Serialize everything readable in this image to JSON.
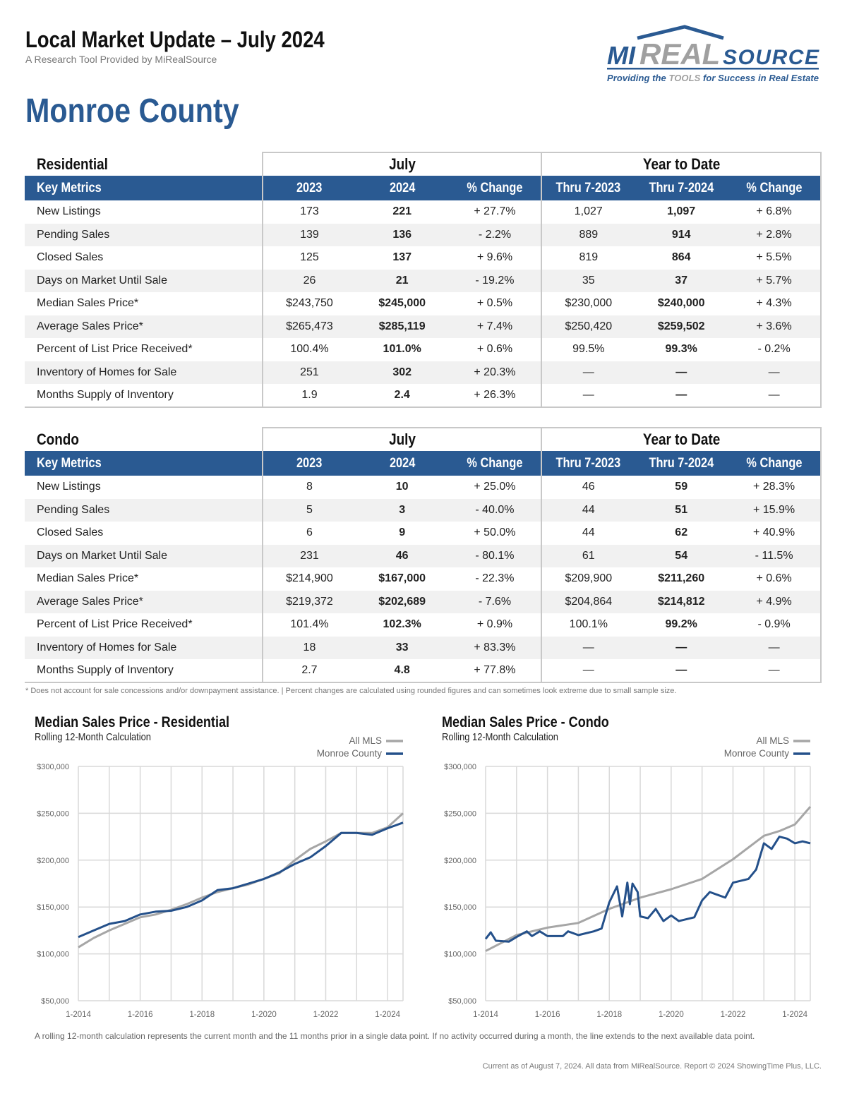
{
  "header": {
    "title": "Local Market Update – July 2024",
    "subtitle": "A Research Tool Provided by MiRealSource",
    "county": "Monroe County"
  },
  "logo": {
    "text_mi": "MI",
    "text_real": "REAL",
    "text_source": "SOURCE",
    "tagline": "Providing the TOOLS for Success in Real Estate"
  },
  "colors": {
    "brand_blue": "#2a5a92",
    "all_mls_gray": "#a6a6a6",
    "monroe_blue": "#24508a"
  },
  "tables": [
    {
      "section": "Residential",
      "group1": "July",
      "group2": "Year to Date",
      "columns": [
        "Key Metrics",
        "2023",
        "2024",
        "% Change",
        "Thru 7-2023",
        "Thru 7-2024",
        "% Change"
      ],
      "rows": [
        [
          "New Listings",
          "173",
          "221",
          "+ 27.7%",
          "1,027",
          "1,097",
          "+ 6.8%"
        ],
        [
          "Pending Sales",
          "139",
          "136",
          "- 2.2%",
          "889",
          "914",
          "+ 2.8%"
        ],
        [
          "Closed Sales",
          "125",
          "137",
          "+ 9.6%",
          "819",
          "864",
          "+ 5.5%"
        ],
        [
          "Days on Market Until Sale",
          "26",
          "21",
          "- 19.2%",
          "35",
          "37",
          "+ 5.7%"
        ],
        [
          "Median Sales Price*",
          "$243,750",
          "$245,000",
          "+ 0.5%",
          "$230,000",
          "$240,000",
          "+ 4.3%"
        ],
        [
          "Average Sales Price*",
          "$265,473",
          "$285,119",
          "+ 7.4%",
          "$250,420",
          "$259,502",
          "+ 3.6%"
        ],
        [
          "Percent of List Price Received*",
          "100.4%",
          "101.0%",
          "+ 0.6%",
          "99.5%",
          "99.3%",
          "- 0.2%"
        ],
        [
          "Inventory of Homes for Sale",
          "251",
          "302",
          "+ 20.3%",
          "—",
          "—",
          "—"
        ],
        [
          "Months Supply of Inventory",
          "1.9",
          "2.4",
          "+ 26.3%",
          "—",
          "—",
          "—"
        ]
      ]
    },
    {
      "section": "Condo",
      "group1": "July",
      "group2": "Year to Date",
      "columns": [
        "Key Metrics",
        "2023",
        "2024",
        "% Change",
        "Thru 7-2023",
        "Thru 7-2024",
        "% Change"
      ],
      "rows": [
        [
          "New Listings",
          "8",
          "10",
          "+ 25.0%",
          "46",
          "59",
          "+ 28.3%"
        ],
        [
          "Pending Sales",
          "5",
          "3",
          "- 40.0%",
          "44",
          "51",
          "+ 15.9%"
        ],
        [
          "Closed Sales",
          "6",
          "9",
          "+ 50.0%",
          "44",
          "62",
          "+ 40.9%"
        ],
        [
          "Days on Market Until Sale",
          "231",
          "46",
          "- 80.1%",
          "61",
          "54",
          "- 11.5%"
        ],
        [
          "Median Sales Price*",
          "$214,900",
          "$167,000",
          "- 22.3%",
          "$209,900",
          "$211,260",
          "+ 0.6%"
        ],
        [
          "Average Sales Price*",
          "$219,372",
          "$202,689",
          "- 7.6%",
          "$204,864",
          "$214,812",
          "+ 4.9%"
        ],
        [
          "Percent of List Price Received*",
          "101.4%",
          "102.3%",
          "+ 0.9%",
          "100.1%",
          "99.2%",
          "- 0.9%"
        ],
        [
          "Inventory of Homes for Sale",
          "18",
          "33",
          "+ 83.3%",
          "—",
          "—",
          "—"
        ],
        [
          "Months Supply of Inventory",
          "2.7",
          "4.8",
          "+ 77.8%",
          "—",
          "—",
          "—"
        ]
      ]
    }
  ],
  "footnote": "* Does not account for sale concessions and/or downpayment assistance. | Percent changes are calculated using rounded figures and can sometimes look extreme due to small sample size.",
  "chart_data": [
    {
      "type": "line",
      "title": "Median Sales Price - Residential",
      "subtitle": "Rolling 12-Month Calculation",
      "ylim": [
        50000,
        300000
      ],
      "yticks": [
        "$300,000",
        "$250,000",
        "$200,000",
        "$150,000",
        "$100,000",
        "$50,000"
      ],
      "xticks": [
        "1-2014",
        "1-2016",
        "1-2018",
        "1-2020",
        "1-2022",
        "1-2024"
      ],
      "grid": true,
      "legend": "top-right",
      "x": [
        "2014-01",
        "2014-07",
        "2015-01",
        "2015-07",
        "2016-01",
        "2016-07",
        "2017-01",
        "2017-07",
        "2018-01",
        "2018-07",
        "2019-01",
        "2019-07",
        "2020-01",
        "2020-07",
        "2021-01",
        "2021-07",
        "2022-01",
        "2022-07",
        "2023-01",
        "2023-07",
        "2024-01",
        "2024-07"
      ],
      "series": [
        {
          "name": "All MLS",
          "values": [
            107000,
            117000,
            125000,
            132000,
            139000,
            142000,
            147000,
            153000,
            160000,
            166000,
            170000,
            174000,
            180000,
            186000,
            200000,
            212000,
            220000,
            229000,
            229000,
            229000,
            235000,
            250000
          ]
        },
        {
          "name": "Monroe County",
          "values": [
            118000,
            125000,
            132000,
            135000,
            142000,
            145000,
            146000,
            150000,
            157000,
            168000,
            170000,
            175000,
            180000,
            187000,
            196000,
            203000,
            215000,
            229000,
            229000,
            227000,
            234000,
            240000
          ]
        }
      ]
    },
    {
      "type": "line",
      "title": "Median Sales Price - Condo",
      "subtitle": "Rolling 12-Month Calculation",
      "ylim": [
        50000,
        300000
      ],
      "yticks": [
        "$300,000",
        "$250,000",
        "$200,000",
        "$150,000",
        "$100,000",
        "$50,000"
      ],
      "xticks": [
        "1-2014",
        "1-2016",
        "1-2018",
        "1-2020",
        "1-2022",
        "1-2024"
      ],
      "grid": true,
      "legend": "top-right",
      "series": [
        {
          "name": "All MLS",
          "x": [
            "2014-01",
            "2015-01",
            "2016-01",
            "2017-01",
            "2018-01",
            "2019-01",
            "2020-01",
            "2021-01",
            "2022-01",
            "2023-01",
            "2023-07",
            "2024-01",
            "2024-07"
          ],
          "values": [
            103000,
            120000,
            128000,
            133000,
            148000,
            160000,
            169000,
            180000,
            201000,
            226000,
            231000,
            238000,
            257000
          ]
        },
        {
          "name": "Monroe County",
          "x": [
            "2014-01",
            "2014-03",
            "2014-05",
            "2014-10",
            "2015-01",
            "2015-05",
            "2015-07",
            "2015-10",
            "2016-01",
            "2016-07",
            "2016-09",
            "2017-01",
            "2017-07",
            "2017-10",
            "2018-01",
            "2018-04",
            "2018-06",
            "2018-08",
            "2018-09",
            "2018-10",
            "2018-12",
            "2019-01",
            "2019-04",
            "2019-07",
            "2019-10",
            "2020-01",
            "2020-04",
            "2020-10",
            "2021-01",
            "2021-04",
            "2021-10",
            "2022-01",
            "2022-07",
            "2022-10",
            "2023-01",
            "2023-04",
            "2023-07",
            "2023-10",
            "2024-01",
            "2024-04",
            "2024-07"
          ],
          "values": [
            116000,
            123000,
            114000,
            113000,
            118000,
            124000,
            119000,
            124000,
            119000,
            119000,
            124000,
            120000,
            124000,
            127000,
            155000,
            172000,
            140000,
            176000,
            153000,
            175000,
            166000,
            140000,
            138000,
            148000,
            135000,
            141000,
            135000,
            139000,
            157000,
            166000,
            160000,
            176000,
            180000,
            190000,
            218000,
            212000,
            225000,
            223000,
            218000,
            220000,
            218000
          ]
        }
      ]
    }
  ],
  "bottom_note": "A rolling 12-month calculation represents the current month and the 11 months prior in a single data point. If no activity occurred during a month, the line extends to the next available data point.",
  "credit": "Current as of August 7, 2024. All data from MiRealSource. Report © 2024 ShowingTime Plus, LLC."
}
